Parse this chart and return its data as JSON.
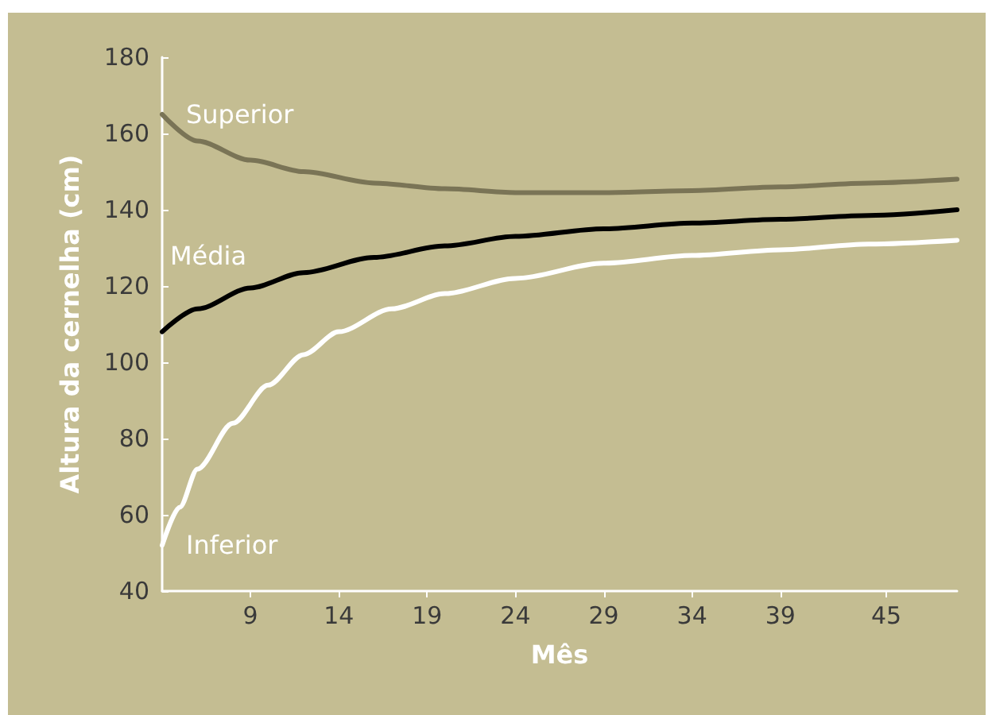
{
  "chart_data": {
    "type": "line",
    "xlabel": "Mês",
    "ylabel": "Altura da cernelha (cm)",
    "xlim": [
      4,
      49
    ],
    "xticks": [
      9,
      14,
      19,
      24,
      29,
      34,
      39,
      45
    ],
    "ylim": [
      40,
      180
    ],
    "yticks": [
      40,
      60,
      80,
      100,
      120,
      140,
      160,
      180
    ],
    "grid": false,
    "legend": false,
    "marker": "none",
    "line_style": "solid",
    "series": [
      {
        "name": "Superior",
        "color": "#7a7456",
        "x": [
          4,
          6,
          9,
          12,
          16,
          20,
          24,
          29,
          34,
          39,
          44,
          49
        ],
        "values": [
          165,
          158,
          153,
          150,
          147,
          145.5,
          144.5,
          144.5,
          145,
          146,
          147,
          148
        ]
      },
      {
        "name": "Média",
        "color": "#000000",
        "x": [
          4,
          6,
          9,
          12,
          16,
          20,
          24,
          29,
          34,
          39,
          44,
          49
        ],
        "values": [
          108,
          114,
          119.5,
          123.5,
          127.5,
          130.5,
          133,
          135,
          136.5,
          137.5,
          138.5,
          140
        ]
      },
      {
        "name": "Inferior",
        "color": "#ffffff",
        "x": [
          4,
          5,
          6,
          8,
          10,
          12,
          14,
          17,
          20,
          24,
          29,
          34,
          39,
          44,
          49
        ],
        "values": [
          52,
          62,
          72,
          84,
          94,
          102,
          108,
          114,
          118,
          122,
          126,
          128,
          129.5,
          131,
          132
        ]
      }
    ]
  }
}
